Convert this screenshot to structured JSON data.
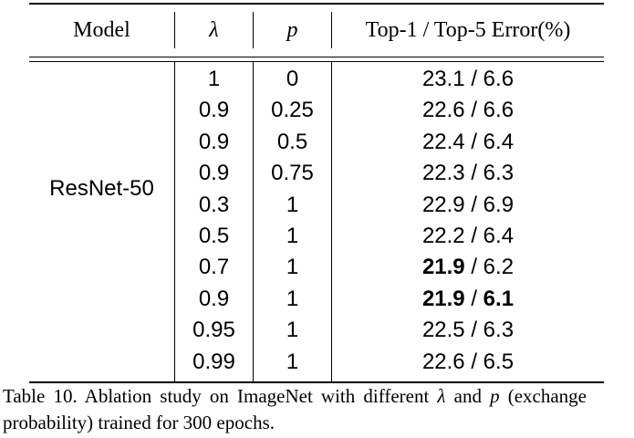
{
  "table": {
    "headers": {
      "model": "Model",
      "lambda": "λ",
      "p": "p",
      "error": "Top-1 / Top-5 Error(%)"
    },
    "model_name": "ResNet-50",
    "rows": [
      {
        "lambda": "1",
        "p": "0",
        "top1": "23.1",
        "top5": "6.6",
        "top1_bold": false,
        "top5_bold": false
      },
      {
        "lambda": "0.9",
        "p": "0.25",
        "top1": "22.6",
        "top5": "6.6",
        "top1_bold": false,
        "top5_bold": false
      },
      {
        "lambda": "0.9",
        "p": "0.5",
        "top1": "22.4",
        "top5": "6.4",
        "top1_bold": false,
        "top5_bold": false
      },
      {
        "lambda": "0.9",
        "p": "0.75",
        "top1": "22.3",
        "top5": "6.3",
        "top1_bold": false,
        "top5_bold": false
      },
      {
        "lambda": "0.3",
        "p": "1",
        "top1": "22.9",
        "top5": "6.9",
        "top1_bold": false,
        "top5_bold": false
      },
      {
        "lambda": "0.5",
        "p": "1",
        "top1": "22.2",
        "top5": "6.4",
        "top1_bold": false,
        "top5_bold": false
      },
      {
        "lambda": "0.7",
        "p": "1",
        "top1": "21.9",
        "top5": "6.2",
        "top1_bold": true,
        "top5_bold": false
      },
      {
        "lambda": "0.9",
        "p": "1",
        "top1": "21.9",
        "top5": "6.1",
        "top1_bold": true,
        "top5_bold": true
      },
      {
        "lambda": "0.95",
        "p": "1",
        "top1": "22.5",
        "top5": "6.3",
        "top1_bold": false,
        "top5_bold": false
      },
      {
        "lambda": "0.99",
        "p": "1",
        "top1": "22.6",
        "top5": "6.5",
        "top1_bold": false,
        "top5_bold": false
      }
    ],
    "separator": " / "
  },
  "caption": {
    "prefix": "Table 10. Ablation study on ImageNet with different ",
    "lambda": "λ",
    "middle": " and ",
    "p": "p",
    "suffix": " (exchange probability) trained for 300 epochs."
  }
}
